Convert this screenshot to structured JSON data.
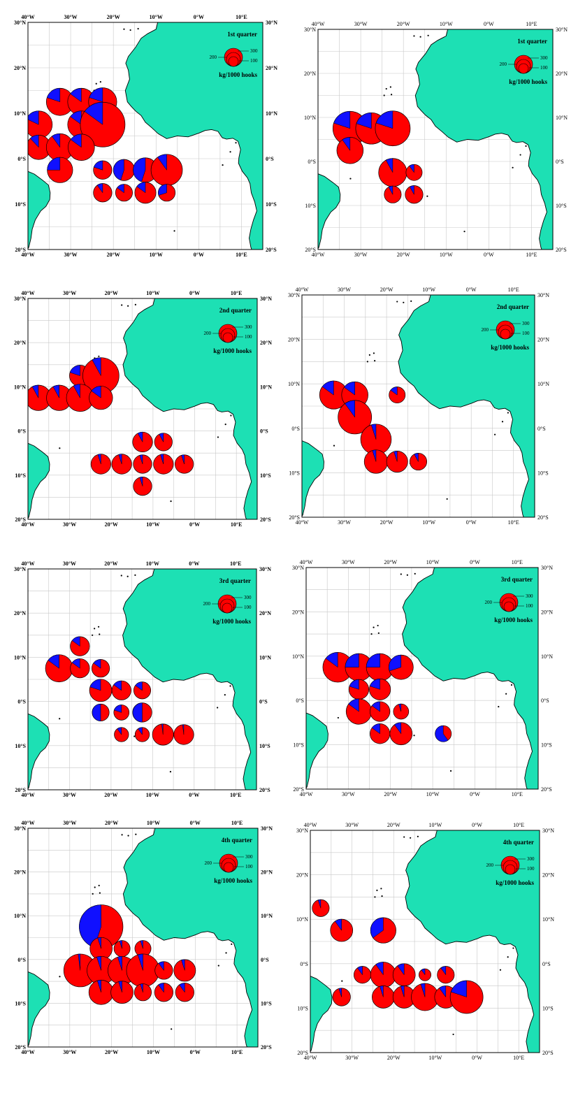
{
  "lon_labels": [
    "40°W",
    "30°W",
    "20°W",
    "10°W",
    "0°W",
    "10°E"
  ],
  "lat_labels": [
    "30°N",
    "20°N",
    "10°N",
    "0°S",
    "10°S",
    "20°S"
  ],
  "legend": {
    "unit": "kg/1000 hooks",
    "scale_values": [
      "300",
      "200",
      "100"
    ]
  },
  "colors": {
    "ocean": "#ffffff",
    "land": "#1de0b4",
    "pie_primary": "#ff0000",
    "pie_secondary": "#1010ff"
  },
  "panels": [
    {
      "name": "q1-left",
      "quarter": "1st quarter",
      "pies": [
        {
          "lon": -37.5,
          "lat": 7.5,
          "value": 130,
          "blue": 0.18
        },
        {
          "lon": -32.5,
          "lat": 12.5,
          "value": 130,
          "blue": 0.2
        },
        {
          "lon": -27.5,
          "lat": 12.5,
          "value": 130,
          "blue": 0.15
        },
        {
          "lon": -22.5,
          "lat": 12.5,
          "value": 140,
          "blue": 0.2
        },
        {
          "lon": -27.5,
          "lat": 7.5,
          "value": 130,
          "blue": 0.15
        },
        {
          "lon": -22.5,
          "lat": 7.5,
          "value": 400,
          "blue": 0.15
        },
        {
          "lon": -37.5,
          "lat": 2.5,
          "value": 100,
          "blue": 0.12
        },
        {
          "lon": -32.5,
          "lat": 2.5,
          "value": 130,
          "blue": 0.1
        },
        {
          "lon": -27.5,
          "lat": 2.5,
          "value": 120,
          "blue": 0.15
        },
        {
          "lon": -32.5,
          "lat": -2.5,
          "value": 110,
          "blue": 0.25
        },
        {
          "lon": -22.5,
          "lat": -2.5,
          "value": 50,
          "blue": 0.2
        },
        {
          "lon": -17.5,
          "lat": -2.5,
          "value": 70,
          "blue": 0.45
        },
        {
          "lon": -12.5,
          "lat": -2.5,
          "value": 100,
          "blue": 0.45
        },
        {
          "lon": -7.5,
          "lat": -2.5,
          "value": 180,
          "blue": 0.1
        },
        {
          "lon": -22.5,
          "lat": -7.5,
          "value": 50,
          "blue": 0.1
        },
        {
          "lon": -17.5,
          "lat": -7.5,
          "value": 40,
          "blue": 0.15
        },
        {
          "lon": -12.5,
          "lat": -7.5,
          "value": 70,
          "blue": 0.15
        },
        {
          "lon": -7.5,
          "lat": -7.5,
          "value": 40,
          "blue": 0.3
        }
      ]
    },
    {
      "name": "q1-right",
      "quarter": "1st quarter",
      "pies": [
        {
          "lon": -32.5,
          "lat": 7.5,
          "value": 220,
          "blue": 0.2
        },
        {
          "lon": -27.5,
          "lat": 7.5,
          "value": 180,
          "blue": 0.2
        },
        {
          "lon": -22.5,
          "lat": 7.5,
          "value": 230,
          "blue": 0.2
        },
        {
          "lon": -32.5,
          "lat": 2.5,
          "value": 120,
          "blue": 0.1
        },
        {
          "lon": -22.5,
          "lat": -2.5,
          "value": 140,
          "blue": 0.08
        },
        {
          "lon": -17.5,
          "lat": -2.5,
          "value": 35,
          "blue": 0.1
        },
        {
          "lon": -22.5,
          "lat": -7.5,
          "value": 40,
          "blue": 0.08
        },
        {
          "lon": -17.5,
          "lat": -7.5,
          "value": 45,
          "blue": 0.08
        }
      ]
    },
    {
      "name": "q2-left",
      "quarter": "2nd quarter",
      "pies": [
        {
          "lon": -27.5,
          "lat": 12.5,
          "value": 70,
          "blue": 0.2
        },
        {
          "lon": -22.5,
          "lat": 12.5,
          "value": 250,
          "blue": 0.08
        },
        {
          "lon": -37.5,
          "lat": 7.5,
          "value": 110,
          "blue": 0.08
        },
        {
          "lon": -32.5,
          "lat": 7.5,
          "value": 110,
          "blue": 0.08
        },
        {
          "lon": -27.5,
          "lat": 7.5,
          "value": 130,
          "blue": 0.08
        },
        {
          "lon": -22.5,
          "lat": 7.5,
          "value": 90,
          "blue": 0.15
        },
        {
          "lon": -12.5,
          "lat": -2.5,
          "value": 60,
          "blue": 0.08
        },
        {
          "lon": -7.5,
          "lat": -2.5,
          "value": 45,
          "blue": 0.08
        },
        {
          "lon": -22.5,
          "lat": -7.5,
          "value": 60,
          "blue": 0.05
        },
        {
          "lon": -17.5,
          "lat": -7.5,
          "value": 60,
          "blue": 0.05
        },
        {
          "lon": -12.5,
          "lat": -7.5,
          "value": 50,
          "blue": 0.05
        },
        {
          "lon": -7.5,
          "lat": -7.5,
          "value": 60,
          "blue": 0.05
        },
        {
          "lon": -2.5,
          "lat": -7.5,
          "value": 50,
          "blue": 0.05
        },
        {
          "lon": -12.5,
          "lat": -12.5,
          "value": 50,
          "blue": 0.05
        }
      ]
    },
    {
      "name": "q2-right",
      "quarter": "2nd quarter",
      "pies": [
        {
          "lon": -32.5,
          "lat": 7.5,
          "value": 140,
          "blue": 0.15
        },
        {
          "lon": -27.5,
          "lat": 7.5,
          "value": 120,
          "blue": 0.15
        },
        {
          "lon": -17.5,
          "lat": 7.5,
          "value": 35,
          "blue": 0.15
        },
        {
          "lon": -27.5,
          "lat": 2.5,
          "value": 210,
          "blue": 0.1
        },
        {
          "lon": -22.5,
          "lat": -2.5,
          "value": 170,
          "blue": 0.05
        },
        {
          "lon": -22.5,
          "lat": -7.5,
          "value": 90,
          "blue": 0.05
        },
        {
          "lon": -17.5,
          "lat": -7.5,
          "value": 70,
          "blue": 0.05
        },
        {
          "lon": -12.5,
          "lat": -7.5,
          "value": 40,
          "blue": 0.08
        }
      ]
    },
    {
      "name": "q3-left",
      "quarter": "3rd quarter",
      "pies": [
        {
          "lon": -27.5,
          "lat": 12.5,
          "value": 55,
          "blue": 0.15
        },
        {
          "lon": -32.5,
          "lat": 7.5,
          "value": 130,
          "blue": 0.15
        },
        {
          "lon": -27.5,
          "lat": 7.5,
          "value": 55,
          "blue": 0.15
        },
        {
          "lon": -22.5,
          "lat": 7.5,
          "value": 45,
          "blue": 0.15
        },
        {
          "lon": -22.5,
          "lat": 2.5,
          "value": 80,
          "blue": 0.2
        },
        {
          "lon": -17.5,
          "lat": 2.5,
          "value": 55,
          "blue": 0.15
        },
        {
          "lon": -12.5,
          "lat": 2.5,
          "value": 40,
          "blue": 0.15
        },
        {
          "lon": -22.5,
          "lat": -2.5,
          "value": 40,
          "blue": 0.5
        },
        {
          "lon": -17.5,
          "lat": -2.5,
          "value": 30,
          "blue": 0.2
        },
        {
          "lon": -12.5,
          "lat": -2.5,
          "value": 55,
          "blue": 0.5
        },
        {
          "lon": -17.5,
          "lat": -7.5,
          "value": 25,
          "blue": 0.1
        },
        {
          "lon": -12.5,
          "lat": -7.5,
          "value": 25,
          "blue": 0.1
        },
        {
          "lon": -7.5,
          "lat": -7.5,
          "value": 70,
          "blue": 0.02
        },
        {
          "lon": -2.5,
          "lat": -7.5,
          "value": 60,
          "blue": 0.02
        }
      ]
    },
    {
      "name": "q3-right",
      "quarter": "3rd quarter",
      "pies": [
        {
          "lon": -32.5,
          "lat": 7.5,
          "value": 160,
          "blue": 0.15
        },
        {
          "lon": -27.5,
          "lat": 7.5,
          "value": 130,
          "blue": 0.25
        },
        {
          "lon": -22.5,
          "lat": 7.5,
          "value": 130,
          "blue": 0.25
        },
        {
          "lon": -17.5,
          "lat": 7.5,
          "value": 100,
          "blue": 0.3
        },
        {
          "lon": -27.5,
          "lat": 2.5,
          "value": 60,
          "blue": 0.2
        },
        {
          "lon": -22.5,
          "lat": 2.5,
          "value": 70,
          "blue": 0.2
        },
        {
          "lon": -27.5,
          "lat": -2.5,
          "value": 110,
          "blue": 0.15
        },
        {
          "lon": -22.5,
          "lat": -2.5,
          "value": 60,
          "blue": 0.15
        },
        {
          "lon": -17.5,
          "lat": -2.5,
          "value": 30,
          "blue": 0.05
        },
        {
          "lon": -22.5,
          "lat": -7.5,
          "value": 60,
          "blue": 0.15
        },
        {
          "lon": -17.5,
          "lat": -7.5,
          "value": 80,
          "blue": 0.1
        },
        {
          "lon": -7.5,
          "lat": -7.5,
          "value": 35,
          "blue": 0.6
        }
      ]
    },
    {
      "name": "q4-left",
      "quarter": "4th quarter",
      "pies": [
        {
          "lon": -22.5,
          "lat": 7.5,
          "value": 380,
          "blue": 0.45
        },
        {
          "lon": -22.5,
          "lat": 2.5,
          "value": 80,
          "blue": 0.05
        },
        {
          "lon": -17.5,
          "lat": 2.5,
          "value": 35,
          "blue": 0.05
        },
        {
          "lon": -12.5,
          "lat": 2.5,
          "value": 35,
          "blue": 0.05
        },
        {
          "lon": -27.5,
          "lat": -2.5,
          "value": 200,
          "blue": 0.02
        },
        {
          "lon": -22.5,
          "lat": -2.5,
          "value": 140,
          "blue": 0.05
        },
        {
          "lon": -17.5,
          "lat": -2.5,
          "value": 140,
          "blue": 0.05
        },
        {
          "lon": -12.5,
          "lat": -2.5,
          "value": 200,
          "blue": 0.05
        },
        {
          "lon": -7.5,
          "lat": -2.5,
          "value": 45,
          "blue": 0.1
        },
        {
          "lon": -2.5,
          "lat": -2.5,
          "value": 75,
          "blue": 0.05
        },
        {
          "lon": -22.5,
          "lat": -7.5,
          "value": 100,
          "blue": 0.05
        },
        {
          "lon": -17.5,
          "lat": -7.5,
          "value": 80,
          "blue": 0.05
        },
        {
          "lon": -12.5,
          "lat": -7.5,
          "value": 40,
          "blue": 0.05
        },
        {
          "lon": -7.5,
          "lat": -7.5,
          "value": 50,
          "blue": 0.1
        },
        {
          "lon": -2.5,
          "lat": -7.5,
          "value": 50,
          "blue": 0.1
        }
      ]
    },
    {
      "name": "q4-right",
      "quarter": "4th quarter",
      "pies": [
        {
          "lon": -37.5,
          "lat": 12.5,
          "value": 40,
          "blue": 0.05
        },
        {
          "lon": -32.5,
          "lat": 7.5,
          "value": 80,
          "blue": 0.1
        },
        {
          "lon": -22.5,
          "lat": 7.5,
          "value": 110,
          "blue": 0.35
        },
        {
          "lon": -27.5,
          "lat": -2.5,
          "value": 40,
          "blue": 0.1
        },
        {
          "lon": -22.5,
          "lat": -2.5,
          "value": 110,
          "blue": 0.1
        },
        {
          "lon": -17.5,
          "lat": -2.5,
          "value": 80,
          "blue": 0.1
        },
        {
          "lon": -12.5,
          "lat": -2.5,
          "value": 15,
          "blue": 0.1
        },
        {
          "lon": -7.5,
          "lat": -2.5,
          "value": 40,
          "blue": 0.1
        },
        {
          "lon": -32.5,
          "lat": -7.5,
          "value": 45,
          "blue": 0.05
        },
        {
          "lon": -22.5,
          "lat": -7.5,
          "value": 80,
          "blue": 0.05
        },
        {
          "lon": -17.5,
          "lat": -7.5,
          "value": 80,
          "blue": 0.05
        },
        {
          "lon": -12.5,
          "lat": -7.5,
          "value": 130,
          "blue": 0.05
        },
        {
          "lon": -7.5,
          "lat": -7.5,
          "value": 80,
          "blue": 0.1
        },
        {
          "lon": -2.5,
          "lat": -7.5,
          "value": 200,
          "blue": 0.2
        }
      ]
    }
  ]
}
